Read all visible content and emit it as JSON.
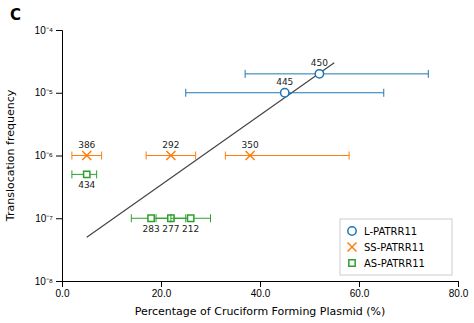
{
  "chart_data": {
    "type": "scatter",
    "title": "C",
    "x_label": "Percentage of Cruciform Forming Plasmid (%)",
    "y_label": "Translocation frequency",
    "log": "y",
    "legend": "lower right",
    "xlim": [
      0,
      80
    ],
    "xticks": [
      {
        "value": 0,
        "label": "0.0"
      },
      {
        "value": 20,
        "label": "20.0"
      },
      {
        "value": 40,
        "label": "40.0"
      },
      {
        "value": 60,
        "label": "60.0"
      },
      {
        "value": 80,
        "label": "80.0"
      }
    ],
    "ylim": [
      1e-08,
      0.0001
    ],
    "yticks": [
      {
        "value": 1e-08,
        "label": "10⁻⁸"
      },
      {
        "value": 1e-07,
        "label": "10⁻⁷"
      },
      {
        "value": 1e-06,
        "label": "10⁻⁶"
      },
      {
        "value": 1e-05,
        "label": "10⁻⁵"
      },
      {
        "value": 0.0001,
        "label": "10⁻⁴"
      }
    ],
    "series": [
      {
        "type": "line",
        "x": [
          5,
          55
        ],
        "values": [
          5e-08,
          3e-05
        ]
      },
      {
        "name": "L-PATRR11",
        "marker": "circle",
        "x": [
          45,
          52
        ],
        "values": [
          1e-05,
          2e-05
        ],
        "x_err_lo": [
          20,
          15
        ],
        "x_err_hi": [
          20,
          22
        ],
        "labels": [
          "445",
          "450"
        ]
      },
      {
        "name": "SS-PATRR11",
        "marker": "cross",
        "x": [
          5,
          22,
          38
        ],
        "values": [
          1e-06,
          1e-06,
          1e-06
        ],
        "x_err_lo": [
          3,
          5,
          5
        ],
        "x_err_hi": [
          3,
          5,
          20
        ],
        "labels": [
          "386",
          "292",
          "350"
        ]
      },
      {
        "name": "AS-PATRR11",
        "marker": "square",
        "x": [
          5,
          18,
          22,
          26
        ],
        "values": [
          5e-07,
          1e-07,
          1e-07,
          1e-07
        ],
        "x_err_lo": [
          3,
          4,
          3,
          4
        ],
        "x_err_hi": [
          2,
          4,
          3,
          4
        ],
        "labels": [
          "434",
          "283",
          "277",
          "212"
        ]
      }
    ]
  }
}
